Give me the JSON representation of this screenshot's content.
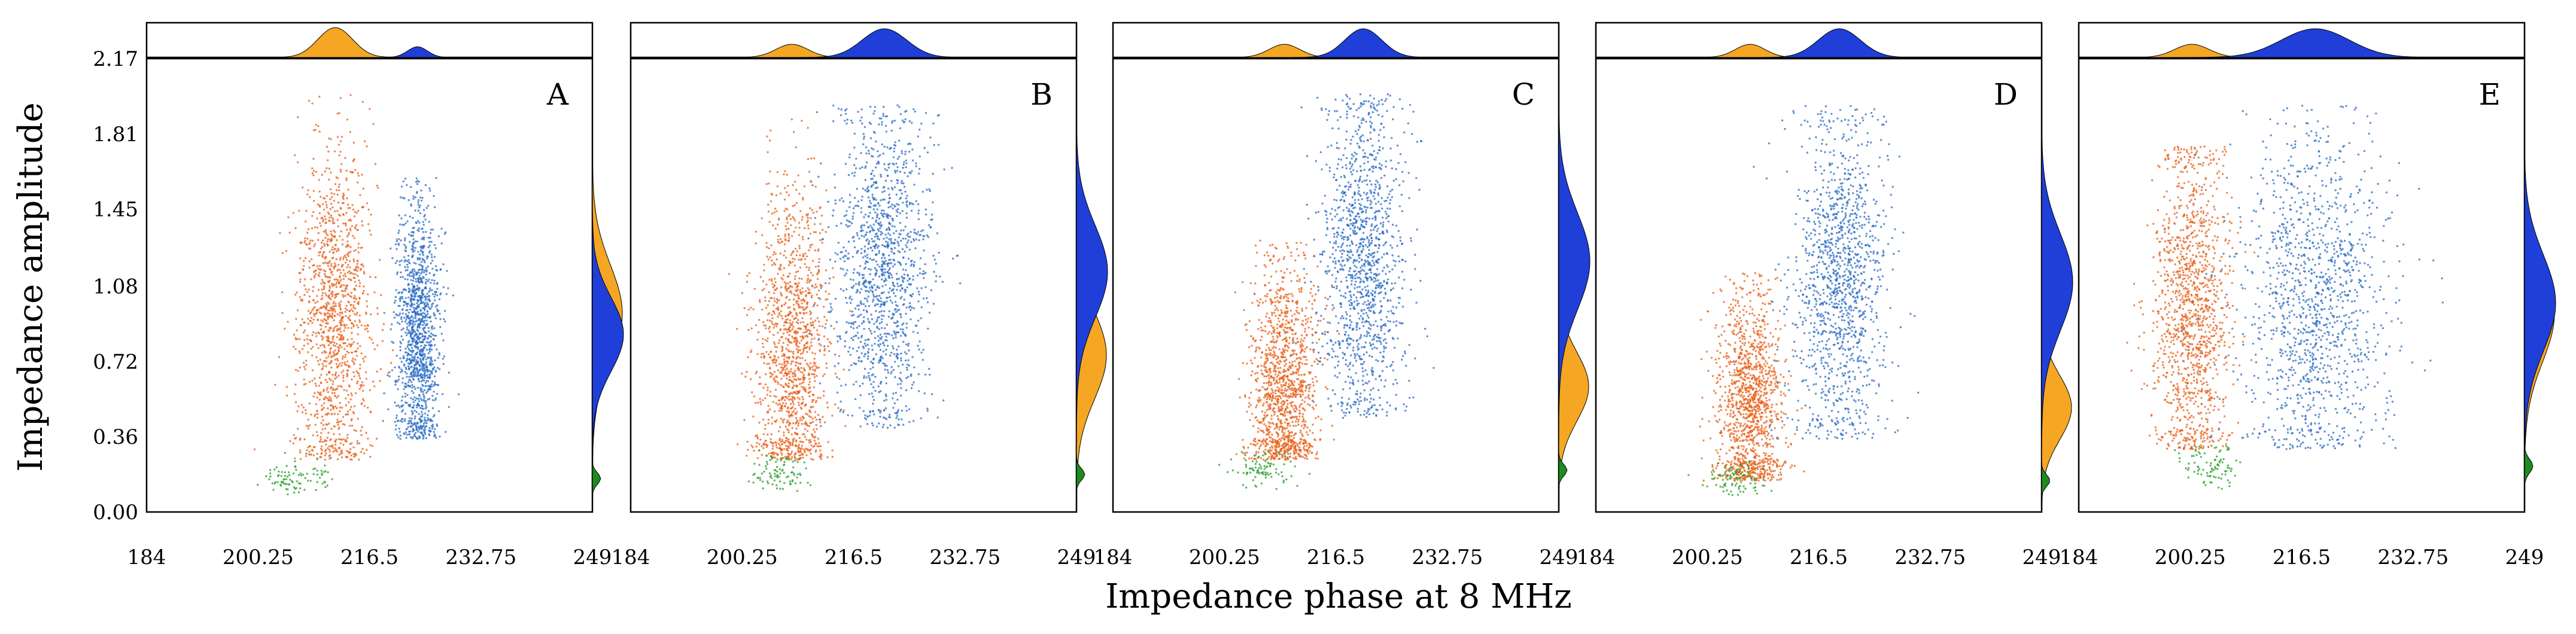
{
  "chart_data": {
    "type": "scatter",
    "xlabel": "Impedance phase at 8 MHz",
    "ylabel": "Impedance amplitude",
    "xticks": [
      "184",
      "200.25",
      "216.5",
      "232.75",
      "249"
    ],
    "yticks": [
      "0.00",
      "0.36",
      "0.72",
      "1.08",
      "1.45",
      "1.81",
      "2.17"
    ],
    "xlim": [
      184,
      249
    ],
    "ylim": [
      0,
      2.17
    ],
    "marginal_histograms": "top and right of each panel",
    "colors": {
      "orange": "#e8601a",
      "blue": "#2b6cc4",
      "green": "#2a9d2a",
      "hist_orange": "#f5a623",
      "hist_blue": "#1f3fd8",
      "hist_green": "#1e8c1e"
    },
    "panels": [
      {
        "label": "A",
        "clusters": [
          {
            "color": "orange",
            "x_center": 211.5,
            "x_spread": 2.8,
            "y_center": 0.95,
            "y_spread": 0.42,
            "y_range": [
              0.25,
              2.05
            ]
          },
          {
            "color": "blue",
            "x_center": 223.5,
            "x_spread": 1.6,
            "y_center": 0.85,
            "y_spread": 0.32,
            "y_range": [
              0.35,
              1.6
            ]
          },
          {
            "color": "green",
            "x_center": 206.0,
            "x_spread": 2.5,
            "y_center": 0.16,
            "y_spread": 0.05,
            "y_range": [
              0.08,
              0.3
            ]
          }
        ]
      },
      {
        "label": "B",
        "clusters": [
          {
            "color": "orange",
            "x_center": 207.5,
            "x_spread": 2.6,
            "y_center": 0.75,
            "y_spread": 0.38,
            "y_range": [
              0.25,
              1.9
            ]
          },
          {
            "color": "blue",
            "x_center": 221.0,
            "x_spread": 3.6,
            "y_center": 1.15,
            "y_spread": 0.4,
            "y_range": [
              0.4,
              1.95
            ]
          },
          {
            "color": "green",
            "x_center": 205.5,
            "x_spread": 2.2,
            "y_center": 0.18,
            "y_spread": 0.05,
            "y_range": [
              0.1,
              0.3
            ]
          }
        ]
      },
      {
        "label": "C",
        "clusters": [
          {
            "color": "orange",
            "x_center": 209.0,
            "x_spread": 2.5,
            "y_center": 0.6,
            "y_spread": 0.3,
            "y_range": [
              0.25,
              1.3
            ]
          },
          {
            "color": "blue",
            "x_center": 220.5,
            "x_spread": 3.0,
            "y_center": 1.2,
            "y_spread": 0.42,
            "y_range": [
              0.45,
              2.0
            ]
          },
          {
            "color": "green",
            "x_center": 206.0,
            "x_spread": 2.5,
            "y_center": 0.2,
            "y_spread": 0.05,
            "y_range": [
              0.1,
              0.3
            ]
          }
        ]
      },
      {
        "label": "D",
        "clusters": [
          {
            "color": "orange",
            "x_center": 206.5,
            "x_spread": 2.4,
            "y_center": 0.5,
            "y_spread": 0.28,
            "y_range": [
              0.15,
              1.15
            ]
          },
          {
            "color": "blue",
            "x_center": 219.5,
            "x_spread": 3.4,
            "y_center": 1.1,
            "y_spread": 0.42,
            "y_range": [
              0.35,
              1.95
            ]
          },
          {
            "color": "green",
            "x_center": 204.5,
            "x_spread": 2.2,
            "y_center": 0.15,
            "y_spread": 0.05,
            "y_range": [
              0.08,
              0.25
            ]
          }
        ]
      },
      {
        "label": "E",
        "clusters": [
          {
            "color": "orange",
            "x_center": 200.5,
            "x_spread": 2.8,
            "y_center": 0.95,
            "y_spread": 0.42,
            "y_range": [
              0.3,
              1.75
            ]
          },
          {
            "color": "blue",
            "x_center": 218.5,
            "x_spread": 5.5,
            "y_center": 1.0,
            "y_spread": 0.42,
            "y_range": [
              0.3,
              1.95
            ]
          },
          {
            "color": "green",
            "x_center": 203.5,
            "x_spread": 2.4,
            "y_center": 0.22,
            "y_spread": 0.06,
            "y_range": [
              0.1,
              0.35
            ]
          }
        ]
      }
    ]
  }
}
